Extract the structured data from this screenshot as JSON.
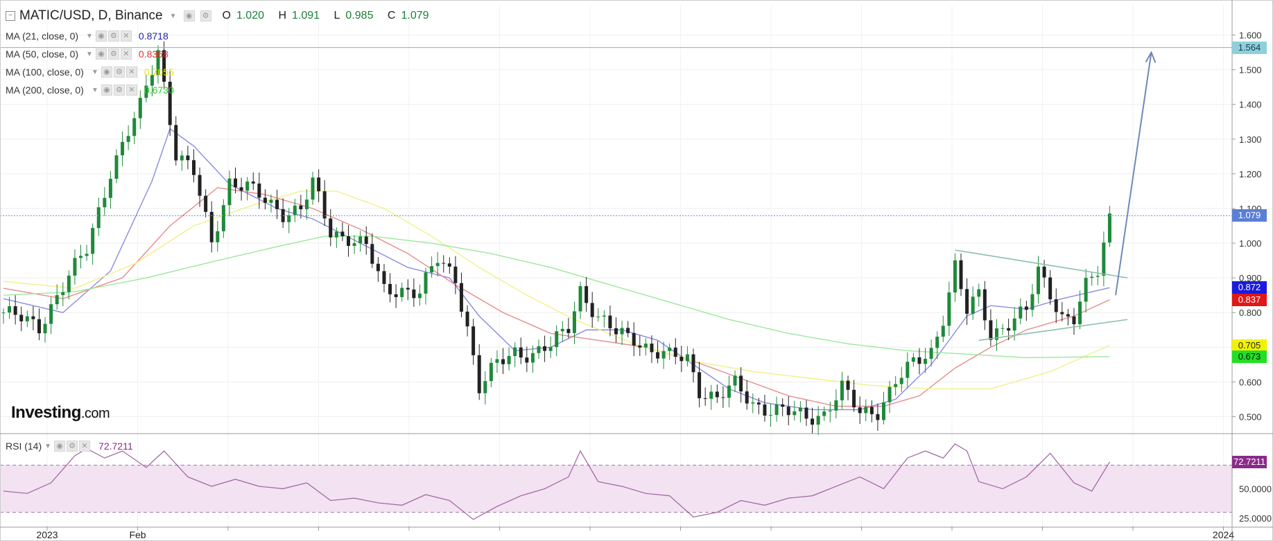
{
  "header": {
    "title": "MATIC/USD, D, Binance",
    "open_label": "O",
    "open": "1.020",
    "high_label": "H",
    "high": "1.091",
    "low_label": "L",
    "low": "0.985",
    "close_label": "C",
    "close": "1.079"
  },
  "indicators": [
    {
      "label": "MA (21, close, 0)",
      "value": "0.8718",
      "color": "#2222aa"
    },
    {
      "label": "MA (50, close, 0)",
      "value": "0.8368",
      "color": "#e03030"
    },
    {
      "label": "MA (100, close, 0)",
      "value": "0.7055",
      "color": "#e6e600"
    },
    {
      "label": "MA (200, close, 0)",
      "value": "0.6730",
      "color": "#22cc22"
    }
  ],
  "rsi": {
    "label": "RSI (14)",
    "value": "72.7211"
  },
  "logo": {
    "text": "Investing",
    "suffix": ".com"
  },
  "price_tags": [
    {
      "text": "1.564",
      "value": 1.564,
      "bg": "#8ed0dc",
      "fg": "#1a3a48"
    },
    {
      "text": "1.079",
      "value": 1.079,
      "bg": "#5b7fd6",
      "fg": "#ffffff"
    },
    {
      "text": "0.872",
      "value": 0.872,
      "bg": "#1a1ae0",
      "fg": "#ffffff"
    },
    {
      "text": "0.837",
      "value": 0.837,
      "bg": "#e01818",
      "fg": "#ffffff"
    },
    {
      "text": "0.705",
      "value": 0.705,
      "bg": "#f2f200",
      "fg": "#222222"
    },
    {
      "text": "0.673",
      "value": 0.673,
      "bg": "#22e022",
      "fg": "#111111"
    }
  ],
  "rsi_tag": {
    "text": "72.7211",
    "bg": "#8a2a8a",
    "fg": "#ffffff"
  },
  "chart_data": {
    "type": "line",
    "x_ticks": [
      "2023",
      "Feb",
      "",
      "",
      "",
      "",
      "",
      "",
      "",
      "",
      "",
      "",
      "",
      "2024",
      ""
    ],
    "y_ticks": [
      "1.600",
      "1.500",
      "1.400",
      "1.300",
      "1.200",
      "1.100",
      "1.000",
      "0.900",
      "0.800",
      "0.700",
      "0.600",
      "0.500"
    ],
    "ylim": [
      0.455,
      1.685
    ],
    "rsi_ticks": [
      "50.0000",
      "25.0000"
    ],
    "rsi_lim": [
      18,
      92
    ],
    "rsi_band": [
      30,
      70
    ],
    "horizontal_level": 1.564,
    "last_price": 1.079,
    "close_points": [
      [
        0,
        0.8
      ],
      [
        6,
        0.76
      ],
      [
        9,
        0.85
      ],
      [
        14,
        0.98
      ],
      [
        18,
        1.21
      ],
      [
        23,
        1.39
      ],
      [
        26,
        1.56
      ],
      [
        29,
        1.26
      ],
      [
        32,
        1.2
      ],
      [
        35,
        1.0
      ],
      [
        38,
        1.18
      ],
      [
        41,
        1.16
      ],
      [
        44,
        1.12
      ],
      [
        47,
        1.09
      ],
      [
        50,
        1.1
      ],
      [
        52,
        1.17
      ],
      [
        55,
        1.03
      ],
      [
        58,
        1.02
      ],
      [
        61,
        0.99
      ],
      [
        64,
        0.86
      ],
      [
        67,
        0.87
      ],
      [
        70,
        0.86
      ],
      [
        73,
        0.95
      ],
      [
        76,
        0.9
      ],
      [
        78,
        0.76
      ],
      [
        80,
        0.58
      ],
      [
        83,
        0.65
      ],
      [
        86,
        0.69
      ],
      [
        89,
        0.68
      ],
      [
        92,
        0.7
      ],
      [
        95,
        0.76
      ],
      [
        97,
        0.87
      ],
      [
        100,
        0.78
      ],
      [
        103,
        0.74
      ],
      [
        106,
        0.73
      ],
      [
        109,
        0.69
      ],
      [
        112,
        0.67
      ],
      [
        115,
        0.67
      ],
      [
        117,
        0.58
      ],
      [
        120,
        0.55
      ],
      [
        123,
        0.59
      ],
      [
        126,
        0.54
      ],
      [
        129,
        0.52
      ],
      [
        132,
        0.51
      ],
      [
        135,
        0.5
      ],
      [
        138,
        0.51
      ],
      [
        141,
        0.58
      ],
      [
        144,
        0.51
      ],
      [
        147,
        0.52
      ],
      [
        150,
        0.6
      ],
      [
        153,
        0.65
      ],
      [
        156,
        0.69
      ],
      [
        158,
        0.79
      ],
      [
        160,
        0.93
      ],
      [
        162,
        0.8
      ],
      [
        164,
        0.85
      ],
      [
        166,
        0.74
      ],
      [
        169,
        0.77
      ],
      [
        172,
        0.8
      ],
      [
        174,
        0.92
      ],
      [
        176,
        0.86
      ],
      [
        178,
        0.79
      ],
      [
        180,
        0.78
      ],
      [
        182,
        0.87
      ],
      [
        184,
        0.92
      ],
      [
        186,
        1.079
      ]
    ],
    "series": [
      {
        "name": "MA (21, close, 0)",
        "color": "#8a8ae0",
        "points": [
          [
            0,
            0.84
          ],
          [
            10,
            0.8
          ],
          [
            18,
            0.92
          ],
          [
            25,
            1.18
          ],
          [
            28,
            1.33
          ],
          [
            32,
            1.28
          ],
          [
            38,
            1.17
          ],
          [
            46,
            1.1
          ],
          [
            52,
            1.07
          ],
          [
            60,
            1.0
          ],
          [
            68,
            0.93
          ],
          [
            75,
            0.9
          ],
          [
            80,
            0.79
          ],
          [
            86,
            0.69
          ],
          [
            92,
            0.7
          ],
          [
            98,
            0.75
          ],
          [
            104,
            0.75
          ],
          [
            110,
            0.72
          ],
          [
            116,
            0.65
          ],
          [
            122,
            0.58
          ],
          [
            128,
            0.54
          ],
          [
            136,
            0.52
          ],
          [
            144,
            0.52
          ],
          [
            150,
            0.55
          ],
          [
            156,
            0.65
          ],
          [
            162,
            0.79
          ],
          [
            166,
            0.82
          ],
          [
            172,
            0.81
          ],
          [
            178,
            0.84
          ],
          [
            186,
            0.8718
          ]
        ]
      },
      {
        "name": "MA (50, close, 0)",
        "color": "#e88a8a",
        "points": [
          [
            0,
            0.87
          ],
          [
            10,
            0.84
          ],
          [
            20,
            0.9
          ],
          [
            28,
            1.05
          ],
          [
            36,
            1.16
          ],
          [
            44,
            1.14
          ],
          [
            52,
            1.1
          ],
          [
            60,
            1.04
          ],
          [
            68,
            0.97
          ],
          [
            76,
            0.88
          ],
          [
            84,
            0.8
          ],
          [
            92,
            0.74
          ],
          [
            100,
            0.72
          ],
          [
            108,
            0.7
          ],
          [
            116,
            0.66
          ],
          [
            124,
            0.61
          ],
          [
            132,
            0.56
          ],
          [
            140,
            0.53
          ],
          [
            148,
            0.53
          ],
          [
            154,
            0.56
          ],
          [
            160,
            0.64
          ],
          [
            166,
            0.7
          ],
          [
            172,
            0.75
          ],
          [
            180,
            0.79
          ],
          [
            186,
            0.8368
          ]
        ]
      },
      {
        "name": "MA (100, close, 0)",
        "color": "#f0f08a",
        "points": [
          [
            0,
            0.89
          ],
          [
            12,
            0.87
          ],
          [
            22,
            0.94
          ],
          [
            32,
            1.05
          ],
          [
            42,
            1.11
          ],
          [
            50,
            1.15
          ],
          [
            56,
            1.15
          ],
          [
            64,
            1.1
          ],
          [
            72,
            1.02
          ],
          [
            80,
            0.93
          ],
          [
            88,
            0.85
          ],
          [
            96,
            0.78
          ],
          [
            106,
            0.71
          ],
          [
            116,
            0.66
          ],
          [
            126,
            0.63
          ],
          [
            136,
            0.61
          ],
          [
            146,
            0.59
          ],
          [
            156,
            0.58
          ],
          [
            166,
            0.58
          ],
          [
            176,
            0.63
          ],
          [
            186,
            0.7055
          ]
        ]
      },
      {
        "name": "MA (200, close, 0)",
        "color": "#9ae89a",
        "points": [
          [
            0,
            0.85
          ],
          [
            12,
            0.86
          ],
          [
            24,
            0.9
          ],
          [
            36,
            0.95
          ],
          [
            46,
            0.99
          ],
          [
            54,
            1.02
          ],
          [
            62,
            1.02
          ],
          [
            72,
            1.0
          ],
          [
            82,
            0.97
          ],
          [
            92,
            0.93
          ],
          [
            102,
            0.88
          ],
          [
            112,
            0.83
          ],
          [
            122,
            0.78
          ],
          [
            132,
            0.74
          ],
          [
            142,
            0.71
          ],
          [
            152,
            0.69
          ],
          [
            162,
            0.68
          ],
          [
            172,
            0.67
          ],
          [
            186,
            0.673
          ]
        ]
      }
    ],
    "rsi_points": [
      [
        0,
        48
      ],
      [
        4,
        46
      ],
      [
        8,
        55
      ],
      [
        12,
        78
      ],
      [
        14,
        84
      ],
      [
        17,
        76
      ],
      [
        20,
        82
      ],
      [
        24,
        68
      ],
      [
        27,
        82
      ],
      [
        31,
        60
      ],
      [
        35,
        52
      ],
      [
        39,
        58
      ],
      [
        43,
        52
      ],
      [
        47,
        50
      ],
      [
        51,
        55
      ],
      [
        55,
        40
      ],
      [
        59,
        42
      ],
      [
        63,
        38
      ],
      [
        67,
        36
      ],
      [
        71,
        45
      ],
      [
        75,
        40
      ],
      [
        79,
        24
      ],
      [
        83,
        35
      ],
      [
        87,
        44
      ],
      [
        91,
        50
      ],
      [
        95,
        60
      ],
      [
        97,
        82
      ],
      [
        100,
        56
      ],
      [
        104,
        52
      ],
      [
        108,
        46
      ],
      [
        112,
        44
      ],
      [
        116,
        26
      ],
      [
        120,
        30
      ],
      [
        124,
        40
      ],
      [
        128,
        36
      ],
      [
        132,
        42
      ],
      [
        136,
        44
      ],
      [
        140,
        52
      ],
      [
        144,
        60
      ],
      [
        148,
        50
      ],
      [
        152,
        76
      ],
      [
        155,
        82
      ],
      [
        158,
        76
      ],
      [
        160,
        88
      ],
      [
        162,
        82
      ],
      [
        164,
        56
      ],
      [
        168,
        50
      ],
      [
        172,
        60
      ],
      [
        176,
        80
      ],
      [
        180,
        55
      ],
      [
        183,
        48
      ],
      [
        186,
        72.72
      ]
    ],
    "trendlines": [
      {
        "name": "upper",
        "points": [
          [
            160,
            0.98
          ],
          [
            189,
            0.9
          ]
        ]
      },
      {
        "name": "lower",
        "points": [
          [
            164,
            0.72
          ],
          [
            189,
            0.78
          ]
        ]
      },
      {
        "name": "projection",
        "points": [
          [
            187,
            0.85
          ],
          [
            193,
            1.55
          ]
        ]
      }
    ]
  }
}
